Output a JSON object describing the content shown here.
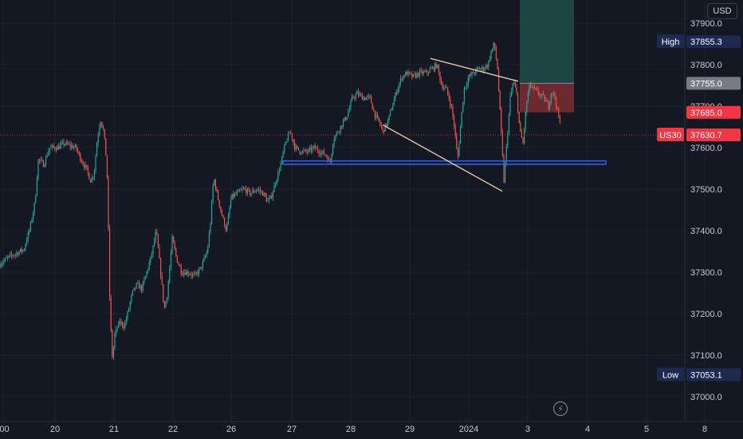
{
  "header": {
    "currency": "USD"
  },
  "colors": {
    "background": "#141823",
    "up": "#26a69a",
    "down": "#ef5350",
    "trendline": "#f5d0a9",
    "support_line": "#2962ff",
    "target_zone": "#1e4d4a",
    "stop_zone": "#7a2e33",
    "current_price_tag": "#f23645",
    "high_low_tag": "#1c2a52"
  },
  "icons": {
    "replay": "lightning-icon"
  },
  "chart_data": {
    "type": "candlestick",
    "symbol": "US30",
    "x_ticks": [
      ":00",
      "20",
      "21",
      "22",
      "26",
      "27",
      "28",
      "29",
      "2024",
      "3",
      "4",
      "5",
      "8"
    ],
    "y_ticks": [
      "37000.0",
      "37100.0",
      "37200.0",
      "37300.0",
      "37400.0",
      "37500.0",
      "37600.0",
      "37700.0",
      "37800.0",
      "37900.0"
    ],
    "ylim": [
      36970,
      37960
    ],
    "price_path": [
      [
        0,
        37320
      ],
      [
        10,
        37335
      ],
      [
        20,
        37345
      ],
      [
        30,
        37355
      ],
      [
        38,
        37410
      ],
      [
        44,
        37470
      ],
      [
        48,
        37570
      ],
      [
        55,
        37560
      ],
      [
        62,
        37600
      ],
      [
        72,
        37600
      ],
      [
        80,
        37610
      ],
      [
        88,
        37605
      ],
      [
        95,
        37600
      ],
      [
        102,
        37570
      ],
      [
        108,
        37550
      ],
      [
        114,
        37520
      ],
      [
        118,
        37540
      ],
      [
        122,
        37620
      ],
      [
        126,
        37670
      ],
      [
        130,
        37640
      ],
      [
        134,
        37560
      ],
      [
        136,
        37400
      ],
      [
        138,
        37200
      ],
      [
        141,
        37090
      ],
      [
        144,
        37150
      ],
      [
        150,
        37180
      ],
      [
        156,
        37170
      ],
      [
        160,
        37200
      ],
      [
        166,
        37250
      ],
      [
        172,
        37270
      ],
      [
        178,
        37260
      ],
      [
        184,
        37300
      ],
      [
        190,
        37340
      ],
      [
        196,
        37400
      ],
      [
        202,
        37290
      ],
      [
        206,
        37210
      ],
      [
        210,
        37250
      ],
      [
        216,
        37380
      ],
      [
        222,
        37330
      ],
      [
        228,
        37300
      ],
      [
        236,
        37300
      ],
      [
        244,
        37290
      ],
      [
        252,
        37310
      ],
      [
        260,
        37350
      ],
      [
        264,
        37420
      ],
      [
        268,
        37530
      ],
      [
        272,
        37490
      ],
      [
        278,
        37440
      ],
      [
        284,
        37400
      ],
      [
        290,
        37480
      ],
      [
        298,
        37490
      ],
      [
        306,
        37500
      ],
      [
        314,
        37490
      ],
      [
        322,
        37500
      ],
      [
        330,
        37490
      ],
      [
        336,
        37470
      ],
      [
        340,
        37480
      ],
      [
        346,
        37520
      ],
      [
        352,
        37560
      ],
      [
        358,
        37610
      ],
      [
        364,
        37640
      ],
      [
        370,
        37600
      ],
      [
        378,
        37590
      ],
      [
        386,
        37590
      ],
      [
        394,
        37600
      ],
      [
        402,
        37590
      ],
      [
        410,
        37580
      ],
      [
        414,
        37560
      ],
      [
        418,
        37620
      ],
      [
        424,
        37640
      ],
      [
        430,
        37660
      ],
      [
        436,
        37680
      ],
      [
        442,
        37720
      ],
      [
        448,
        37730
      ],
      [
        456,
        37720
      ],
      [
        464,
        37720
      ],
      [
        470,
        37680
      ],
      [
        476,
        37660
      ],
      [
        480,
        37640
      ],
      [
        486,
        37660
      ],
      [
        492,
        37700
      ],
      [
        498,
        37740
      ],
      [
        504,
        37770
      ],
      [
        510,
        37780
      ],
      [
        518,
        37770
      ],
      [
        526,
        37780
      ],
      [
        534,
        37780
      ],
      [
        542,
        37790
      ],
      [
        548,
        37800
      ],
      [
        554,
        37750
      ],
      [
        560,
        37740
      ],
      [
        566,
        37700
      ],
      [
        570,
        37650
      ],
      [
        574,
        37570
      ],
      [
        578,
        37660
      ],
      [
        582,
        37740
      ],
      [
        588,
        37770
      ],
      [
        594,
        37780
      ],
      [
        600,
        37790
      ],
      [
        606,
        37790
      ],
      [
        612,
        37800
      ],
      [
        616,
        37830
      ],
      [
        620,
        37850
      ],
      [
        624,
        37790
      ],
      [
        628,
        37660
      ],
      [
        632,
        37520
      ],
      [
        636,
        37620
      ],
      [
        640,
        37720
      ],
      [
        644,
        37760
      ],
      [
        648,
        37730
      ],
      [
        652,
        37640
      ],
      [
        656,
        37610
      ],
      [
        660,
        37700
      ],
      [
        664,
        37750
      ],
      [
        670,
        37740
      ],
      [
        676,
        37730
      ],
      [
        682,
        37720
      ],
      [
        688,
        37700
      ],
      [
        692,
        37740
      ],
      [
        696,
        37720
      ],
      [
        700,
        37680
      ],
      [
        704,
        37640
      ]
    ],
    "price_lines": [
      {
        "label": "High",
        "value": "37855.3",
        "price": 37855.3
      },
      {
        "label": "",
        "value": "37755.0",
        "price": 37755.0
      },
      {
        "label": "",
        "value": "37685.0",
        "price": 37685.0
      },
      {
        "label": "US30",
        "value": "37630.7",
        "price": 37630.7
      },
      {
        "label": "Low",
        "value": "37053.1",
        "price": 37053.1
      }
    ],
    "drawings": {
      "upper_trendline": [
        [
          540,
          37815
        ],
        [
          650,
          37760
        ]
      ],
      "lower_trendline": [
        [
          480,
          37655
        ],
        [
          630,
          37495
        ]
      ],
      "support_box": {
        "x1": 355,
        "x2": 760,
        "top": 37568,
        "bottom": 37560
      },
      "position_tool": {
        "x1": 652,
        "x2": 720,
        "entry": 37755.0,
        "stop": 37685.0,
        "target": 37960
      }
    }
  }
}
